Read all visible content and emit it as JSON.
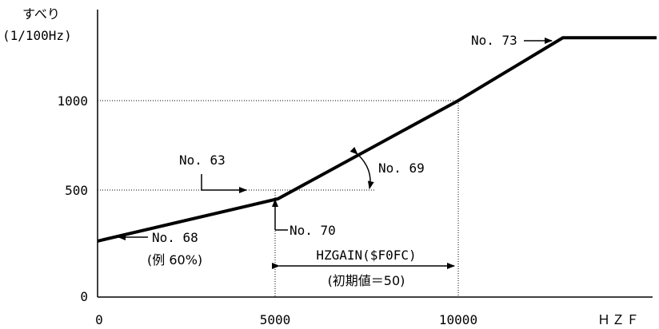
{
  "axes": {
    "y_title": "すべり",
    "y_unit": "(1/100Hz)",
    "x_title": "ＨＺＦ",
    "x_ticks": [
      "0",
      "5000",
      "10000"
    ],
    "y_ticks": [
      "0",
      "500",
      "1000"
    ]
  },
  "curve": {
    "points": [
      {
        "x": 0,
        "y": 285
      },
      {
        "x": 5000,
        "y": 500
      },
      {
        "x": 10000,
        "y": 1000
      },
      {
        "x": 12900,
        "y": 1320
      },
      {
        "x": 15500,
        "y": 1320
      }
    ],
    "x_range": [
      0,
      15600
    ],
    "y_range": [
      0,
      1320
    ]
  },
  "annotations": {
    "no73": "No. 73",
    "no63": "No. 63",
    "no69": "No. 69",
    "no70": "No. 70",
    "no68": "No. 68",
    "no68_note": "(例 60%)",
    "hzgain": "HZGAIN($F0FC)",
    "hzgain_note": "(初期値＝50)"
  }
}
